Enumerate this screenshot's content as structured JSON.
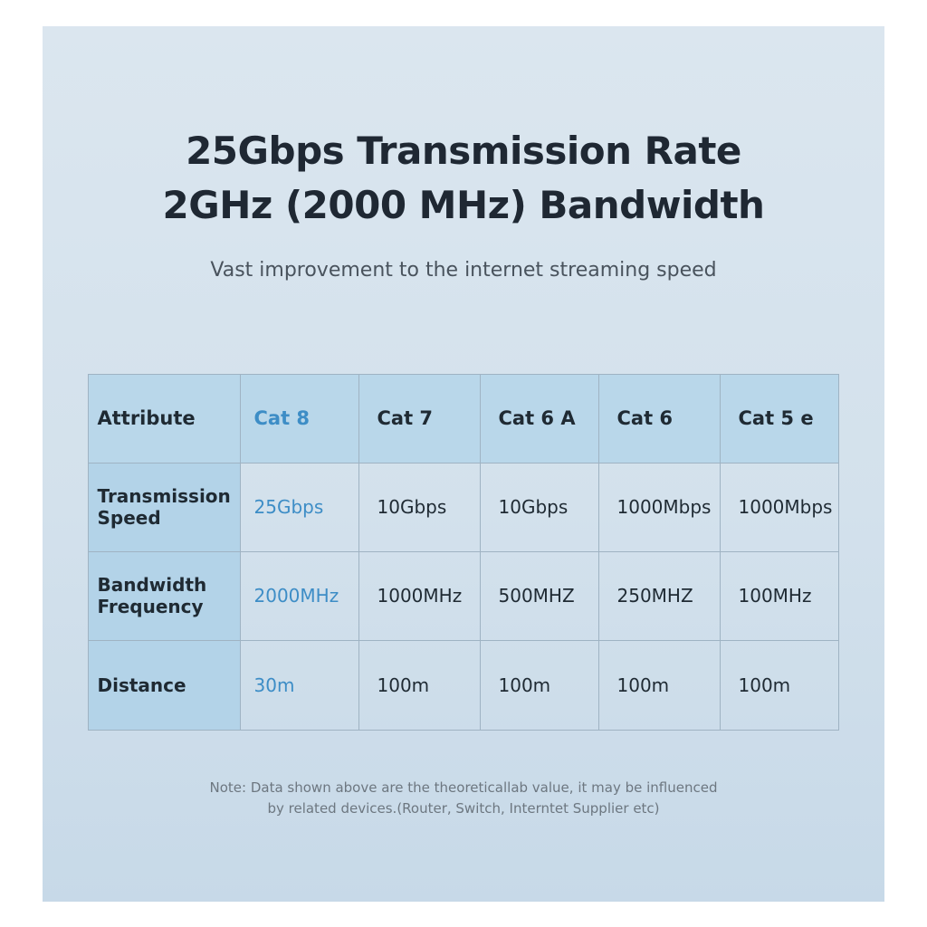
{
  "header": {
    "title_lines": [
      "25Gbps Transmission Rate",
      "2GHz (2000 MHz) Bandwidth"
    ],
    "subtitle": "Vast improvement to the internet streaming speed"
  },
  "table": {
    "columns": [
      "Attribute",
      "Cat 8",
      "Cat 7",
      "Cat 6 A",
      "Cat 6",
      "Cat 5 e"
    ],
    "rows": [
      [
        "Transmission Speed",
        "25Gbps",
        "10Gbps",
        "10Gbps",
        "1000Mbps",
        "1000Mbps"
      ],
      [
        "Bandwidth Frequency",
        "2000MHz",
        "1000MHz",
        "500MHZ",
        "250MHZ",
        "100MHz"
      ],
      [
        "Distance",
        "30m",
        "100m",
        "100m",
        "100m",
        "100m"
      ]
    ]
  },
  "note_lines": [
    "Note: Data shown above are the theoreticallab value, it may be influenced",
    "by related devices.(Router, Switch, Interntet Supplier etc)"
  ]
}
